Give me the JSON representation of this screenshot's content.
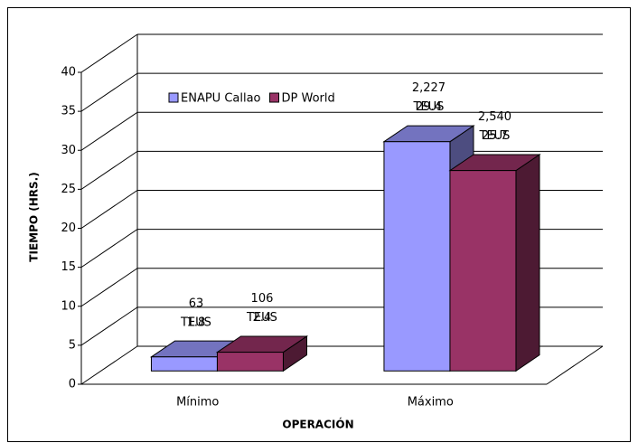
{
  "chart_data": {
    "type": "bar3d",
    "y_axis_label": "TIEMPO (HRS.)",
    "x_axis_label": "OPERACIÓN",
    "categories": [
      "Mínimo",
      "Máximo"
    ],
    "series": [
      {
        "name": "ENAPU Callao",
        "color": "#9999ff",
        "values": [
          1.8,
          29.4
        ]
      },
      {
        "name": "DP World",
        "color": "#993366",
        "values": [
          2.4,
          25.7
        ]
      }
    ],
    "annotations": [
      [
        [
          "63",
          "TEUS"
        ],
        [
          "2,227",
          "TEUS"
        ]
      ],
      [
        [
          "106",
          "TEUS"
        ],
        [
          "2,540",
          "TEUS"
        ]
      ]
    ],
    "ylim": [
      0,
      40
    ],
    "yticks": [
      0,
      5,
      10,
      15,
      20,
      25,
      30,
      35,
      40
    ],
    "grid": true
  }
}
